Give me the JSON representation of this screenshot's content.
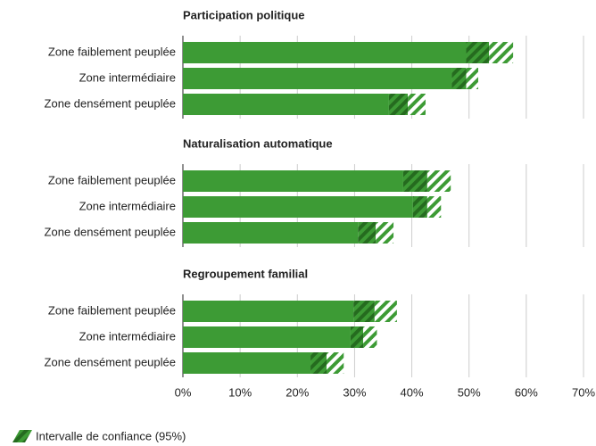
{
  "chart_data": {
    "type": "bar",
    "color": "#3d9b35",
    "ci_color": "#256b1f",
    "xlim": [
      0,
      70
    ],
    "xticks": [
      {
        "value": 0,
        "label": "0%"
      },
      {
        "value": 10,
        "label": "10%"
      },
      {
        "value": 20,
        "label": "20%"
      },
      {
        "value": 30,
        "label": "30%"
      },
      {
        "value": 40,
        "label": "40%"
      },
      {
        "value": 50,
        "label": "50%"
      },
      {
        "value": 60,
        "label": "60%"
      },
      {
        "value": 70,
        "label": "70%"
      }
    ],
    "grid": true,
    "legend": {
      "label": "Intervalle de confiance (95%)"
    },
    "panels": [
      {
        "title": "Participation politique",
        "categories": [
          "Zone faiblement peuplée",
          "Zone intermédiaire",
          "Zone densément peuplée"
        ],
        "values": [
          53.5,
          49.5,
          39.3
        ],
        "ci_lower": [
          49.5,
          47.0,
          36.0
        ],
        "ci_upper": [
          57.7,
          51.6,
          42.4
        ]
      },
      {
        "title": "Naturalisation automatique",
        "categories": [
          "Zone faiblement peuplée",
          "Zone intermédiaire",
          "Zone densément peuplée"
        ],
        "values": [
          42.7,
          42.7,
          33.7
        ],
        "ci_lower": [
          38.5,
          40.2,
          30.6
        ],
        "ci_upper": [
          46.8,
          45.1,
          36.8
        ]
      },
      {
        "title": "Regroupement familial",
        "categories": [
          "Zone faiblement peuplée",
          "Zone intermédiaire",
          "Zone densément peuplée"
        ],
        "values": [
          33.5,
          31.5,
          25.1
        ],
        "ci_lower": [
          29.8,
          29.3,
          22.3
        ],
        "ci_upper": [
          37.4,
          33.9,
          28.1
        ]
      }
    ]
  }
}
